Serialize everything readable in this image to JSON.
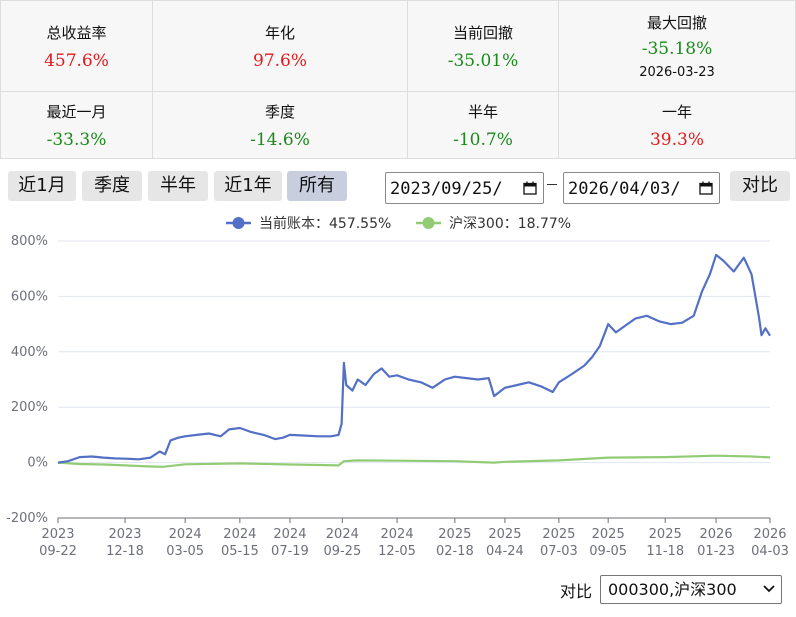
{
  "stats": {
    "row1": [
      {
        "label": "总收益率",
        "value": "457.6%",
        "color": "#e31a1c"
      },
      {
        "label": "年化",
        "value": "97.6%",
        "color": "#e31a1c"
      },
      {
        "label": "当前回撤",
        "value": "-35.01%",
        "color": "#1a8a1a"
      },
      {
        "label": "最大回撤",
        "value": "-35.18%",
        "color": "#1a8a1a",
        "date": "2026-03-23"
      }
    ],
    "row2": [
      {
        "label": "最近一月",
        "value": "-33.3%",
        "color": "#1a8a1a"
      },
      {
        "label": "季度",
        "value": "-14.6%",
        "color": "#1a8a1a"
      },
      {
        "label": "半年",
        "value": "-10.7%",
        "color": "#1a8a1a"
      },
      {
        "label": "一年",
        "value": "39.3%",
        "color": "#e31a1c"
      }
    ]
  },
  "toolbar": {
    "buttons": [
      "近1月",
      "季度",
      "半年",
      "近1年",
      "所有"
    ],
    "active": "所有",
    "start_date": "2023/09/25/",
    "end_date": "2026/04/03/",
    "compare_button": "对比"
  },
  "compare": {
    "label": "对比",
    "selected": "000300,沪深300"
  },
  "chart_data": {
    "type": "line",
    "ylim": [
      -200,
      800
    ],
    "yticks": [
      -200,
      0,
      200,
      400,
      600,
      800
    ],
    "ytick_labels": [
      "-200%",
      "0%",
      "200%",
      "400%",
      "600%",
      "800%"
    ],
    "x_ticks": [
      {
        "year": "2023",
        "date": "09-22",
        "x": "2023-09-22"
      },
      {
        "year": "2023",
        "date": "12-18",
        "x": "2023-12-18"
      },
      {
        "year": "2024",
        "date": "03-05",
        "x": "2024-03-05"
      },
      {
        "year": "2024",
        "date": "05-15",
        "x": "2024-05-15"
      },
      {
        "year": "2024",
        "date": "07-19",
        "x": "2024-07-19"
      },
      {
        "year": "2024",
        "date": "09-25",
        "x": "2024-09-25"
      },
      {
        "year": "2024",
        "date": "12-05",
        "x": "2024-12-05"
      },
      {
        "year": "2025",
        "date": "02-18",
        "x": "2025-02-18"
      },
      {
        "year": "2025",
        "date": "04-24",
        "x": "2025-04-24"
      },
      {
        "year": "2025",
        "date": "07-03",
        "x": "2025-07-03"
      },
      {
        "year": "2025",
        "date": "09-05",
        "x": "2025-09-05"
      },
      {
        "year": "2025",
        "date": "11-18",
        "x": "2025-11-18"
      },
      {
        "year": "2026",
        "date": "01-23",
        "x": "2026-01-23"
      },
      {
        "year": "2026",
        "date": "04-03",
        "x": "2026-04-03"
      }
    ],
    "grid": true,
    "legend_position": "top-center",
    "series": [
      {
        "name": "当前账本",
        "legend": "当前账本：457.55%",
        "color": "#5470c6",
        "points": [
          [
            "2023-09-22",
            0
          ],
          [
            "2023-10-05",
            5
          ],
          [
            "2023-10-20",
            20
          ],
          [
            "2023-11-05",
            22
          ],
          [
            "2023-11-20",
            18
          ],
          [
            "2023-12-05",
            15
          ],
          [
            "2023-12-18",
            14
          ],
          [
            "2024-01-05",
            12
          ],
          [
            "2024-01-20",
            18
          ],
          [
            "2024-02-01",
            40
          ],
          [
            "2024-02-08",
            30
          ],
          [
            "2024-02-15",
            80
          ],
          [
            "2024-02-25",
            90
          ],
          [
            "2024-03-05",
            95
          ],
          [
            "2024-03-20",
            100
          ],
          [
            "2024-04-05",
            105
          ],
          [
            "2024-04-20",
            95
          ],
          [
            "2024-05-01",
            120
          ],
          [
            "2024-05-15",
            125
          ],
          [
            "2024-05-30",
            110
          ],
          [
            "2024-06-15",
            100
          ],
          [
            "2024-06-30",
            85
          ],
          [
            "2024-07-10",
            90
          ],
          [
            "2024-07-19",
            100
          ],
          [
            "2024-08-05",
            98
          ],
          [
            "2024-08-25",
            95
          ],
          [
            "2024-09-10",
            95
          ],
          [
            "2024-09-20",
            100
          ],
          [
            "2024-09-24",
            140
          ],
          [
            "2024-09-27",
            360
          ],
          [
            "2024-09-30",
            280
          ],
          [
            "2024-10-08",
            260
          ],
          [
            "2024-10-15",
            300
          ],
          [
            "2024-10-25",
            280
          ],
          [
            "2024-11-05",
            320
          ],
          [
            "2024-11-15",
            340
          ],
          [
            "2024-11-25",
            310
          ],
          [
            "2024-12-05",
            315
          ],
          [
            "2024-12-20",
            300
          ],
          [
            "2025-01-05",
            290
          ],
          [
            "2025-01-20",
            270
          ],
          [
            "2025-02-05",
            300
          ],
          [
            "2025-02-18",
            310
          ],
          [
            "2025-03-05",
            305
          ],
          [
            "2025-03-20",
            300
          ],
          [
            "2025-04-03",
            305
          ],
          [
            "2025-04-10",
            240
          ],
          [
            "2025-04-24",
            270
          ],
          [
            "2025-05-10",
            280
          ],
          [
            "2025-05-25",
            290
          ],
          [
            "2025-06-10",
            275
          ],
          [
            "2025-06-25",
            255
          ],
          [
            "2025-07-03",
            290
          ],
          [
            "2025-07-20",
            320
          ],
          [
            "2025-08-05",
            350
          ],
          [
            "2025-08-15",
            380
          ],
          [
            "2025-08-25",
            420
          ],
          [
            "2025-09-05",
            500
          ],
          [
            "2025-09-15",
            470
          ],
          [
            "2025-09-25",
            490
          ],
          [
            "2025-10-10",
            520
          ],
          [
            "2025-10-25",
            530
          ],
          [
            "2025-11-10",
            510
          ],
          [
            "2025-11-25",
            500
          ],
          [
            "2025-12-10",
            505
          ],
          [
            "2025-12-25",
            530
          ],
          [
            "2026-01-05",
            620
          ],
          [
            "2026-01-15",
            680
          ],
          [
            "2026-01-23",
            750
          ],
          [
            "2026-02-01",
            730
          ],
          [
            "2026-02-15",
            690
          ],
          [
            "2026-02-28",
            740
          ],
          [
            "2026-03-10",
            680
          ],
          [
            "2026-03-20",
            520
          ],
          [
            "2026-03-23",
            460
          ],
          [
            "2026-03-28",
            485
          ],
          [
            "2026-04-03",
            458
          ]
        ]
      },
      {
        "name": "沪深300",
        "legend": "沪深300：18.77%",
        "color": "#91cc75",
        "points": [
          [
            "2023-09-22",
            0
          ],
          [
            "2023-10-20",
            -5
          ],
          [
            "2023-11-20",
            -7
          ],
          [
            "2023-12-18",
            -10
          ],
          [
            "2024-01-20",
            -14
          ],
          [
            "2024-02-05",
            -15
          ],
          [
            "2024-03-05",
            -6
          ],
          [
            "2024-05-15",
            -3
          ],
          [
            "2024-07-19",
            -7
          ],
          [
            "2024-09-20",
            -10
          ],
          [
            "2024-09-27",
            5
          ],
          [
            "2024-10-15",
            8
          ],
          [
            "2024-12-05",
            7
          ],
          [
            "2025-02-18",
            5
          ],
          [
            "2025-04-10",
            0
          ],
          [
            "2025-04-24",
            3
          ],
          [
            "2025-07-03",
            8
          ],
          [
            "2025-09-05",
            18
          ],
          [
            "2025-11-18",
            20
          ],
          [
            "2026-01-23",
            25
          ],
          [
            "2026-03-10",
            22
          ],
          [
            "2026-04-03",
            18.77
          ]
        ]
      }
    ]
  }
}
